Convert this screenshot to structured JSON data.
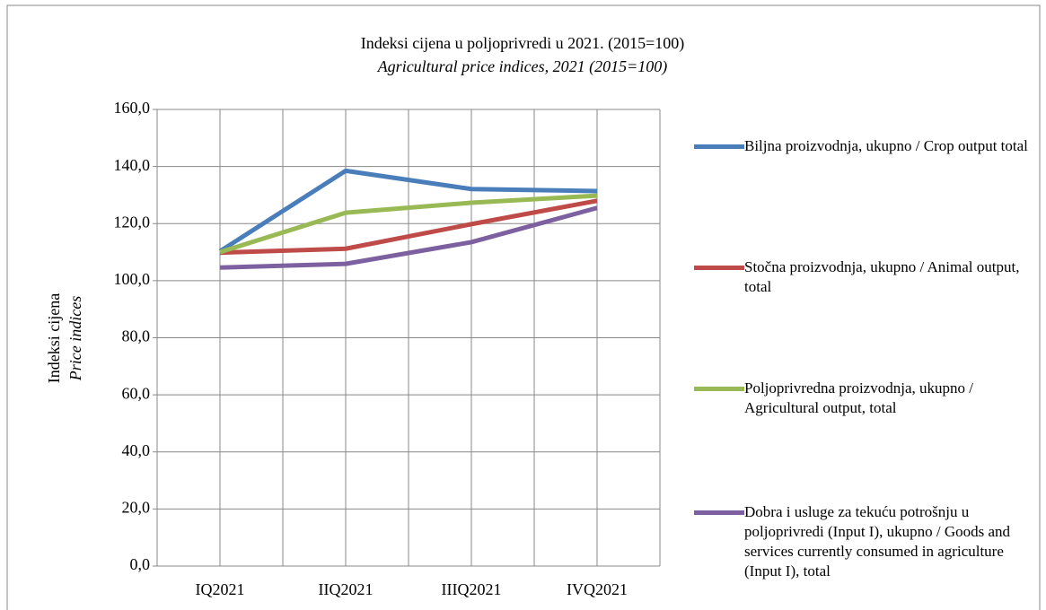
{
  "chart_data": {
    "type": "line",
    "title": "Indeksi cijena u poljoprivredi u 2021. (2015=100)",
    "subtitle": "Agricultural price indices, 2021 (2015=100)",
    "y_label": "Indeksi cijena",
    "y_label_en": "Price indices",
    "categories": [
      "IQ2021",
      "IIQ2021",
      "IIIQ2021",
      "IVQ2021"
    ],
    "series": [
      {
        "name": "Biljna proizvodnja, ukupno / Crop output total",
        "color": "#4a7ebb",
        "values": [
          110.3,
          138.5,
          132.1,
          131.4
        ]
      },
      {
        "name": "Stočna proizvodnja, ukupno / Animal output, total",
        "color": "#be4b48",
        "values": [
          109.8,
          111.2,
          119.8,
          128.0
        ]
      },
      {
        "name": "Poljoprivredna proizvodnja, ukupno / Agricultural output, total",
        "color": "#98b954",
        "values": [
          110.0,
          123.8,
          127.3,
          129.8
        ]
      },
      {
        "name": "Dobra i usluge za tekuću potrošnju u poljoprivredi (Input I), ukupno / Goods and services currently consumed in agriculture (Input I), total",
        "color": "#7d60a0",
        "values": [
          104.6,
          105.9,
          113.5,
          125.5
        ]
      }
    ],
    "ylim": [
      0,
      160
    ],
    "yticks": [
      {
        "value": 0,
        "label": "0,0"
      },
      {
        "value": 20,
        "label": "20,0"
      },
      {
        "value": 40,
        "label": "40,0"
      },
      {
        "value": 60,
        "label": "60,0"
      },
      {
        "value": 80,
        "label": "80,0"
      },
      {
        "value": 100,
        "label": "100,0"
      },
      {
        "value": 120,
        "label": "120,0"
      },
      {
        "value": 140,
        "label": "140,0"
      },
      {
        "value": 160,
        "label": "160,0"
      }
    ],
    "grid": true,
    "legend": "right"
  }
}
